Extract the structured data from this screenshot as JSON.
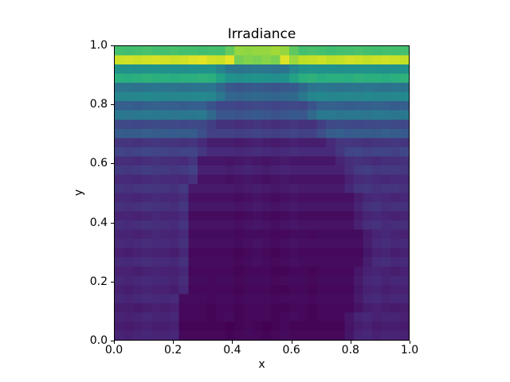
{
  "chart_data": {
    "type": "heatmap",
    "title": "Irradiance",
    "xlabel": "x",
    "ylabel": "y",
    "x_range": [
      0.0,
      1.0
    ],
    "y_range": [
      0.0,
      1.0
    ],
    "x_ticks": [
      0.0,
      0.2,
      0.4,
      0.6,
      0.8,
      1.0
    ],
    "y_ticks": [
      0.0,
      0.2,
      0.4,
      0.6,
      0.8,
      1.0
    ],
    "x_tick_labels": [
      "0.0",
      "0.2",
      "0.4",
      "0.6",
      "0.8",
      "1.0"
    ],
    "y_tick_labels": [
      "0.0",
      "0.2",
      "0.4",
      "0.6",
      "0.8",
      "1.0"
    ],
    "grid_on": false,
    "legend": "none",
    "colormap": "viridis",
    "colormap_stops": [
      "#440154",
      "#482475",
      "#414487",
      "#355f8d",
      "#2a788e",
      "#21918c",
      "#22a884",
      "#44bf70",
      "#7ad151",
      "#bddf26",
      "#fde725"
    ],
    "grid_shape": [
      32,
      32
    ],
    "values_scale": "normalized irradiance mapped to colormap position, 0-100; no colorbar shown",
    "rows_order": "first row corresponds to y=1.0 (top of plot), last row to y=0.0",
    "values": [
      [
        70,
        69,
        70,
        71,
        70,
        70,
        71,
        70,
        70,
        69,
        70,
        70,
        76,
        84,
        83,
        84,
        84,
        86,
        84,
        75,
        70,
        71,
        70,
        69,
        70,
        70,
        71,
        70,
        69,
        70,
        70,
        70
      ],
      [
        92,
        93,
        92,
        93,
        94,
        93,
        92,
        93,
        95,
        96,
        93,
        92,
        96,
        79,
        81,
        80,
        82,
        80,
        95,
        85,
        90,
        91,
        92,
        90,
        91,
        93,
        92,
        91,
        92,
        93,
        92,
        91
      ],
      [
        50,
        50,
        49,
        50,
        51,
        50,
        50,
        49,
        50,
        50,
        51,
        45,
        39,
        38,
        39,
        40,
        39,
        38,
        39,
        45,
        50,
        51,
        50,
        50,
        49,
        50,
        50,
        51,
        50,
        49,
        50,
        50
      ],
      [
        63,
        62,
        63,
        64,
        63,
        63,
        62,
        63,
        63,
        64,
        63,
        57,
        50,
        49,
        50,
        51,
        50,
        49,
        50,
        57,
        63,
        64,
        62,
        63,
        63,
        62,
        64,
        63,
        63,
        62,
        63,
        64
      ],
      [
        38,
        38,
        37,
        38,
        39,
        38,
        38,
        37,
        38,
        38,
        39,
        33,
        27,
        26,
        27,
        28,
        27,
        26,
        27,
        28,
        33,
        38,
        39,
        38,
        37,
        38,
        38,
        39,
        38,
        37,
        38,
        38
      ],
      [
        46,
        45,
        46,
        47,
        46,
        46,
        45,
        46,
        46,
        47,
        46,
        40,
        33,
        32,
        33,
        34,
        33,
        32,
        33,
        34,
        40,
        46,
        47,
        45,
        46,
        46,
        45,
        47,
        46,
        45,
        46,
        47
      ],
      [
        30,
        30,
        29,
        30,
        31,
        30,
        30,
        29,
        30,
        30,
        26,
        21,
        21,
        20,
        21,
        22,
        21,
        20,
        21,
        22,
        21,
        26,
        30,
        31,
        30,
        29,
        30,
        30,
        31,
        30,
        29,
        30
      ],
      [
        40,
        39,
        40,
        41,
        40,
        40,
        39,
        40,
        40,
        41,
        34,
        27,
        27,
        26,
        27,
        28,
        27,
        26,
        27,
        28,
        27,
        34,
        40,
        41,
        39,
        40,
        40,
        39,
        41,
        40,
        39,
        40
      ],
      [
        22,
        22,
        21,
        22,
        23,
        22,
        22,
        21,
        22,
        22,
        18,
        14,
        14,
        13,
        14,
        15,
        14,
        13,
        14,
        15,
        14,
        14,
        18,
        22,
        23,
        22,
        21,
        22,
        22,
        23,
        22,
        21
      ],
      [
        29,
        28,
        29,
        30,
        29,
        29,
        28,
        29,
        29,
        24,
        19,
        19,
        19,
        18,
        19,
        20,
        19,
        18,
        19,
        20,
        19,
        19,
        24,
        29,
        30,
        28,
        29,
        29,
        28,
        30,
        29,
        28
      ],
      [
        15,
        15,
        14,
        15,
        16,
        15,
        15,
        14,
        15,
        12,
        8,
        8,
        8,
        7,
        8,
        9,
        8,
        7,
        8,
        9,
        8,
        8,
        8,
        12,
        15,
        16,
        15,
        14,
        15,
        15,
        16,
        15
      ],
      [
        20,
        19,
        20,
        21,
        20,
        20,
        19,
        20,
        20,
        16,
        12,
        12,
        12,
        11,
        12,
        13,
        12,
        11,
        12,
        13,
        12,
        12,
        12,
        12,
        16,
        20,
        21,
        19,
        20,
        20,
        19,
        21
      ],
      [
        13,
        13,
        12,
        13,
        14,
        13,
        13,
        12,
        15,
        6,
        6,
        6,
        5,
        6,
        7,
        6,
        5,
        6,
        7,
        6,
        6,
        6,
        6,
        6,
        10,
        13,
        14,
        13,
        12,
        13,
        13,
        14
      ],
      [
        17,
        16,
        17,
        18,
        17,
        17,
        16,
        17,
        19,
        9,
        9,
        9,
        8,
        9,
        10,
        9,
        8,
        9,
        10,
        9,
        9,
        9,
        9,
        9,
        9,
        13,
        17,
        18,
        16,
        17,
        17,
        16
      ],
      [
        12,
        12,
        11,
        12,
        13,
        12,
        12,
        11,
        14,
        5,
        5,
        5,
        4,
        5,
        6,
        5,
        4,
        5,
        6,
        5,
        5,
        5,
        5,
        5,
        5,
        9,
        12,
        13,
        12,
        11,
        12,
        12
      ],
      [
        15,
        14,
        15,
        16,
        15,
        15,
        14,
        17,
        7,
        7,
        7,
        7,
        7,
        6,
        7,
        8,
        7,
        6,
        7,
        8,
        7,
        7,
        7,
        7,
        7,
        11,
        15,
        16,
        14,
        15,
        15,
        14
      ],
      [
        11,
        11,
        10,
        11,
        12,
        11,
        11,
        13,
        4,
        4,
        4,
        4,
        4,
        3,
        4,
        5,
        4,
        3,
        4,
        5,
        4,
        4,
        4,
        4,
        4,
        4,
        8,
        11,
        12,
        11,
        10,
        11
      ],
      [
        14,
        13,
        14,
        15,
        14,
        14,
        13,
        16,
        6,
        6,
        6,
        6,
        6,
        5,
        6,
        7,
        6,
        5,
        6,
        7,
        6,
        6,
        6,
        6,
        6,
        6,
        10,
        14,
        15,
        13,
        14,
        14
      ],
      [
        10,
        10,
        9,
        10,
        11,
        10,
        10,
        12,
        3,
        3,
        3,
        3,
        3,
        2,
        3,
        4,
        3,
        2,
        3,
        4,
        3,
        3,
        3,
        3,
        3,
        3,
        7,
        10,
        11,
        10,
        9,
        10
      ],
      [
        13,
        12,
        13,
        14,
        13,
        13,
        12,
        15,
        5,
        5,
        5,
        5,
        5,
        4,
        5,
        6,
        5,
        4,
        5,
        6,
        5,
        5,
        5,
        5,
        5,
        5,
        9,
        13,
        14,
        12,
        13,
        13
      ],
      [
        10,
        10,
        9,
        10,
        11,
        10,
        10,
        12,
        3,
        3,
        3,
        3,
        3,
        2,
        3,
        3,
        3,
        2,
        2,
        3,
        3,
        2,
        3,
        3,
        3,
        3,
        3,
        7,
        10,
        11,
        10,
        9
      ],
      [
        12,
        11,
        12,
        13,
        12,
        12,
        11,
        14,
        4,
        4,
        4,
        4,
        4,
        3,
        4,
        5,
        4,
        3,
        4,
        5,
        4,
        4,
        4,
        4,
        4,
        4,
        4,
        8,
        12,
        13,
        11,
        12
      ],
      [
        9,
        8,
        9,
        10,
        9,
        9,
        8,
        11,
        2,
        2,
        2,
        2,
        2,
        1,
        2,
        3,
        2,
        1,
        2,
        3,
        2,
        2,
        2,
        2,
        2,
        2,
        2,
        6,
        9,
        10,
        8,
        9
      ],
      [
        12,
        11,
        12,
        13,
        12,
        12,
        11,
        14,
        3,
        3,
        3,
        3,
        3,
        2,
        3,
        4,
        3,
        2,
        3,
        4,
        3,
        3,
        3,
        3,
        3,
        3,
        3,
        8,
        12,
        13,
        11,
        12
      ],
      [
        9,
        9,
        8,
        9,
        10,
        9,
        9,
        11,
        2,
        2,
        2,
        2,
        2,
        1,
        2,
        2,
        2,
        1,
        1,
        2,
        2,
        1,
        2,
        2,
        2,
        2,
        6,
        9,
        10,
        9,
        8,
        9
      ],
      [
        11,
        10,
        11,
        12,
        11,
        11,
        10,
        13,
        3,
        3,
        2,
        3,
        3,
        2,
        3,
        3,
        3,
        2,
        3,
        3,
        3,
        2,
        3,
        3,
        3,
        3,
        7,
        11,
        12,
        10,
        11,
        11
      ],
      [
        9,
        8,
        9,
        10,
        9,
        9,
        8,
        11,
        2,
        2,
        2,
        2,
        2,
        1,
        2,
        2,
        2,
        1,
        1,
        2,
        2,
        1,
        2,
        2,
        2,
        2,
        6,
        9,
        10,
        8,
        9,
        9
      ],
      [
        11,
        10,
        11,
        12,
        11,
        11,
        12,
        3,
        3,
        3,
        2,
        3,
        3,
        2,
        3,
        3,
        3,
        2,
        3,
        3,
        3,
        2,
        3,
        3,
        3,
        3,
        7,
        11,
        12,
        10,
        11,
        11
      ],
      [
        8,
        8,
        7,
        8,
        9,
        8,
        9,
        2,
        2,
        2,
        1,
        2,
        2,
        1,
        2,
        2,
        2,
        1,
        1,
        2,
        2,
        1,
        2,
        2,
        2,
        2,
        5,
        8,
        9,
        8,
        7,
        8
      ],
      [
        10,
        9,
        10,
        11,
        10,
        10,
        11,
        2,
        2,
        2,
        1,
        2,
        3,
        1,
        2,
        2,
        2,
        1,
        2,
        3,
        2,
        1,
        2,
        2,
        2,
        6,
        10,
        11,
        9,
        10,
        10,
        9
      ],
      [
        8,
        7,
        8,
        9,
        8,
        8,
        9,
        1,
        1,
        1,
        1,
        1,
        0,
        1,
        2,
        1,
        0,
        1,
        2,
        1,
        1,
        1,
        1,
        1,
        1,
        5,
        8,
        9,
        7,
        8,
        8,
        7
      ],
      [
        10,
        9,
        10,
        11,
        10,
        10,
        11,
        2,
        2,
        2,
        2,
        2,
        1,
        2,
        3,
        2,
        1,
        2,
        3,
        2,
        2,
        2,
        2,
        2,
        2,
        6,
        10,
        11,
        9,
        10,
        10,
        9
      ]
    ]
  },
  "colors": {
    "background": "#ffffff",
    "text": "#000000",
    "spine": "#000000",
    "heatmap_low": "#440154",
    "heatmap_high": "#fde725"
  }
}
